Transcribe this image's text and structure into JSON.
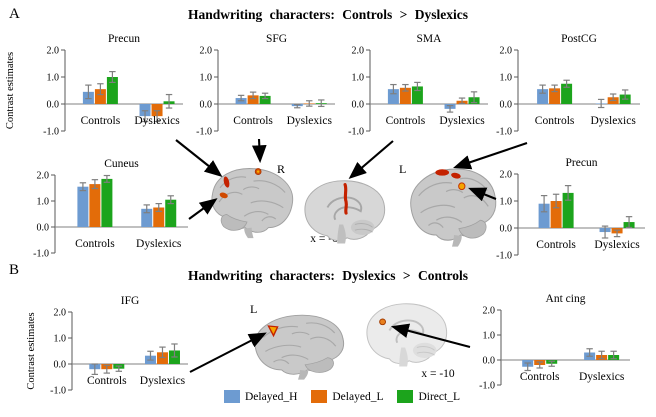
{
  "panels": {
    "a": {
      "label": "A",
      "title": "Handwriting characters: Controls > Dyslexics"
    },
    "b": {
      "label": "B",
      "title": "Handwriting characters: Dyslexics > Controls"
    }
  },
  "brains": {
    "a_lateral_right": {
      "label": "R"
    },
    "a_medial": {
      "caption": "x = -6"
    },
    "a_lateral_left": {
      "label": "L"
    },
    "b_lateral": {
      "label": "L"
    },
    "b_medial": {
      "caption": "x = -10"
    }
  },
  "legend": {
    "items": [
      {
        "label": "Delayed_H",
        "color": "#6D9BD1"
      },
      {
        "label": "Delayed_L",
        "color": "#E36C09"
      },
      {
        "label": "Direct_L",
        "color": "#1CA41C"
      }
    ]
  },
  "style_colors": {
    "error_bar": "#7f7f7f",
    "axis": "#595959",
    "zero_line": "#808080",
    "activation_red": "#C42200",
    "activation_orange": "#F5A500"
  },
  "chart_data": [
    {
      "type": "bar",
      "title": "Precun",
      "ylabel": "Contrast estimates",
      "categories": [
        "Controls",
        "Dyslexics"
      ],
      "series": [
        {
          "name": "Delayed_H",
          "values": [
            0.45,
            -0.45
          ],
          "errors": [
            0.25,
            0.2
          ]
        },
        {
          "name": "Delayed_L",
          "values": [
            0.55,
            -0.45
          ],
          "errors": [
            0.2,
            0.2
          ]
        },
        {
          "name": "Direct_L",
          "values": [
            1.0,
            0.1
          ],
          "errors": [
            0.2,
            0.25
          ]
        }
      ],
      "ylim": [
        -1.0,
        2.0
      ],
      "yticks": [
        2.0,
        1.0,
        0.0,
        -1.0
      ]
    },
    {
      "type": "bar",
      "title": "SFG",
      "ylabel": "",
      "categories": [
        "Controls",
        "Dyslexics"
      ],
      "series": [
        {
          "name": "Delayed_H",
          "values": [
            0.22,
            -0.08
          ],
          "errors": [
            0.1,
            0.06
          ]
        },
        {
          "name": "Delayed_L",
          "values": [
            0.32,
            0.02
          ],
          "errors": [
            0.12,
            0.1
          ]
        },
        {
          "name": "Direct_L",
          "values": [
            0.3,
            0.03
          ],
          "errors": [
            0.1,
            0.12
          ]
        }
      ],
      "ylim": [
        -1.0,
        2.0
      ],
      "yticks": [
        2.0,
        1.0,
        0.0,
        -1.0
      ]
    },
    {
      "type": "bar",
      "title": "SMA",
      "ylabel": "",
      "categories": [
        "Controls",
        "Dyslexics"
      ],
      "series": [
        {
          "name": "Delayed_H",
          "values": [
            0.55,
            -0.18
          ],
          "errors": [
            0.17,
            0.12
          ]
        },
        {
          "name": "Delayed_L",
          "values": [
            0.6,
            0.12
          ],
          "errors": [
            0.12,
            0.1
          ]
        },
        {
          "name": "Direct_L",
          "values": [
            0.65,
            0.25
          ],
          "errors": [
            0.15,
            0.2
          ]
        }
      ],
      "ylim": [
        -1.0,
        2.0
      ],
      "yticks": [
        2.0,
        1.0,
        0.0,
        -1.0
      ]
    },
    {
      "type": "bar",
      "title": "PostCG",
      "ylabel": "",
      "categories": [
        "Controls",
        "Dyslexics"
      ],
      "series": [
        {
          "name": "Delayed_H",
          "values": [
            0.55,
            0.02
          ],
          "errors": [
            0.15,
            0.15
          ]
        },
        {
          "name": "Delayed_L",
          "values": [
            0.58,
            0.25
          ],
          "errors": [
            0.12,
            0.12
          ]
        },
        {
          "name": "Direct_L",
          "values": [
            0.75,
            0.35
          ],
          "errors": [
            0.13,
            0.17
          ]
        }
      ],
      "ylim": [
        -1.0,
        2.0
      ],
      "yticks": [
        2.0,
        1.0,
        0.0,
        -1.0
      ]
    },
    {
      "type": "bar",
      "title": "Cuneus",
      "ylabel": "",
      "categories": [
        "Controls",
        "Dyslexics"
      ],
      "series": [
        {
          "name": "Delayed_H",
          "values": [
            1.55,
            0.7
          ],
          "errors": [
            0.15,
            0.15
          ]
        },
        {
          "name": "Delayed_L",
          "values": [
            1.65,
            0.75
          ],
          "errors": [
            0.17,
            0.15
          ]
        },
        {
          "name": "Direct_L",
          "values": [
            1.85,
            1.05
          ],
          "errors": [
            0.13,
            0.15
          ]
        }
      ],
      "ylim": [
        -1.0,
        2.0
      ],
      "yticks": [
        2.0,
        1.0,
        0.0,
        -1.0
      ]
    },
    {
      "type": "bar",
      "title": "Precun",
      "ylabel": "",
      "categories": [
        "Controls",
        "Dyslexics"
      ],
      "series": [
        {
          "name": "Delayed_H",
          "values": [
            0.9,
            -0.15
          ],
          "errors": [
            0.3,
            0.22
          ]
        },
        {
          "name": "Delayed_L",
          "values": [
            1.0,
            -0.2
          ],
          "errors": [
            0.25,
            0.12
          ]
        },
        {
          "name": "Direct_L",
          "values": [
            1.3,
            0.22
          ],
          "errors": [
            0.27,
            0.2
          ]
        }
      ],
      "ylim": [
        -1.0,
        2.0
      ],
      "yticks": [
        2.0,
        1.0,
        0.0,
        -1.0
      ]
    },
    {
      "type": "bar",
      "title": "IFG",
      "ylabel": "Contrast estimates",
      "categories": [
        "Controls",
        "Dyslexics"
      ],
      "series": [
        {
          "name": "Delayed_H",
          "values": [
            -0.2,
            0.32
          ],
          "errors": [
            0.2,
            0.17
          ]
        },
        {
          "name": "Delayed_L",
          "values": [
            -0.2,
            0.45
          ],
          "errors": [
            0.15,
            0.2
          ]
        },
        {
          "name": "Direct_L",
          "values": [
            -0.18,
            0.52
          ],
          "errors": [
            0.1,
            0.25
          ]
        }
      ],
      "ylim": [
        -1.0,
        2.0
      ],
      "yticks": [
        2.0,
        1.0,
        0.0,
        -1.0
      ]
    },
    {
      "type": "bar",
      "title": "Ant cing",
      "ylabel": "",
      "categories": [
        "Controls",
        "Dyslexics"
      ],
      "series": [
        {
          "name": "Delayed_H",
          "values": [
            -0.27,
            0.3
          ],
          "errors": [
            0.15,
            0.15
          ]
        },
        {
          "name": "Delayed_L",
          "values": [
            -0.2,
            0.2
          ],
          "errors": [
            0.12,
            0.15
          ]
        },
        {
          "name": "Direct_L",
          "values": [
            -0.15,
            0.2
          ],
          "errors": [
            0.1,
            0.15
          ]
        }
      ],
      "ylim": [
        -1.0,
        2.0
      ],
      "yticks": [
        2.0,
        1.0,
        0.0,
        -1.0
      ]
    }
  ]
}
